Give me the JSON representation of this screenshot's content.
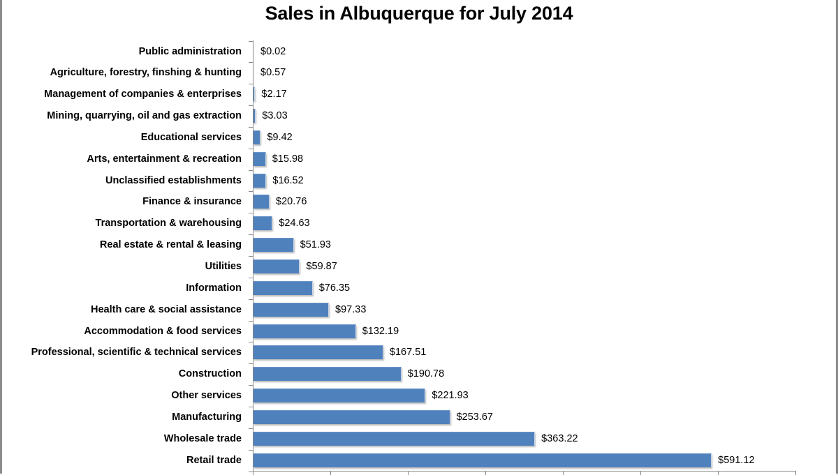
{
  "chart": {
    "title": "Sales in Albuquerque for July 2014"
  },
  "colors": {
    "bar": "#4F81BD",
    "axis": "#8A8A8A",
    "frame": "#8C8C8C"
  },
  "chart_data": {
    "type": "bar",
    "orientation": "horizontal",
    "title": "Sales in Albuquerque for July 2014",
    "xlabel": "",
    "ylabel": "",
    "xlim": [
      0,
      700
    ],
    "x_tick_values": [
      0,
      100,
      200,
      300,
      400,
      500,
      600,
      700
    ],
    "x_tick_labels_visible": false,
    "grid": false,
    "legend": null,
    "value_prefix": "$",
    "categories": [
      "Public administration",
      "Agriculture, forestry, finshing & hunting",
      "Management of companies & enterprises",
      "Mining, quarrying, oil and gas extraction",
      "Educational services",
      "Arts, entertainment & recreation",
      "Unclassified establishments",
      "Finance & insurance",
      "Transportation & warehousing",
      "Real estate & rental & leasing",
      "Utilities",
      "Information",
      "Health care & social assistance",
      "Accommodation & food services",
      "Professional, scientific & technical services",
      "Construction",
      "Other services",
      "Manufacturing",
      "Wholesale trade",
      "Retail trade"
    ],
    "values": [
      0.02,
      0.57,
      2.17,
      3.03,
      9.42,
      15.98,
      16.52,
      20.76,
      24.63,
      51.93,
      59.87,
      76.35,
      97.33,
      132.19,
      167.51,
      190.78,
      221.93,
      253.67,
      363.22,
      591.12
    ],
    "value_labels": [
      "$0.02",
      "$0.57",
      "$2.17",
      "$3.03",
      "$9.42",
      "$15.98",
      "$16.52",
      "$20.76",
      "$24.63",
      "$51.93",
      "$59.87",
      "$76.35",
      "$97.33",
      "$132.19",
      "$167.51",
      "$190.78",
      "$221.93",
      "$253.67",
      "$363.22",
      "$591.12"
    ]
  }
}
